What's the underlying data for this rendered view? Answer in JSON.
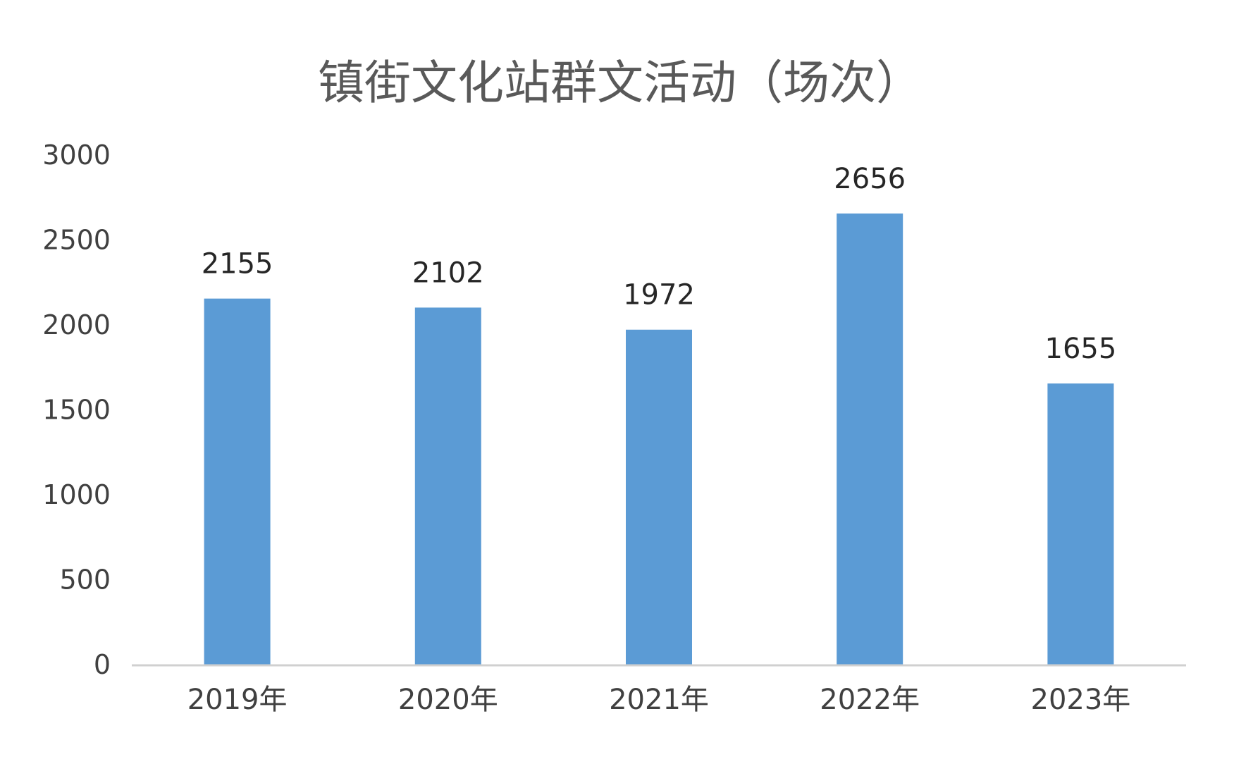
{
  "chart_data": {
    "type": "bar",
    "title": "镇街文化站群文活动（场次）",
    "categories": [
      "2019年",
      "2020年",
      "2021年",
      "2022年",
      "2023年"
    ],
    "values": [
      2155,
      2102,
      1972,
      2656,
      1655
    ],
    "data_labels": [
      "2155",
      "2102",
      "1972",
      "2656",
      "1655"
    ],
    "yticks": [
      "0",
      "500",
      "1000",
      "1500",
      "2000",
      "2500",
      "3000"
    ],
    "ylim": [
      0,
      3000
    ],
    "xlabel": "",
    "ylabel": "",
    "grid": false,
    "legend": "none",
    "bar_color": "#5b9bd5"
  }
}
